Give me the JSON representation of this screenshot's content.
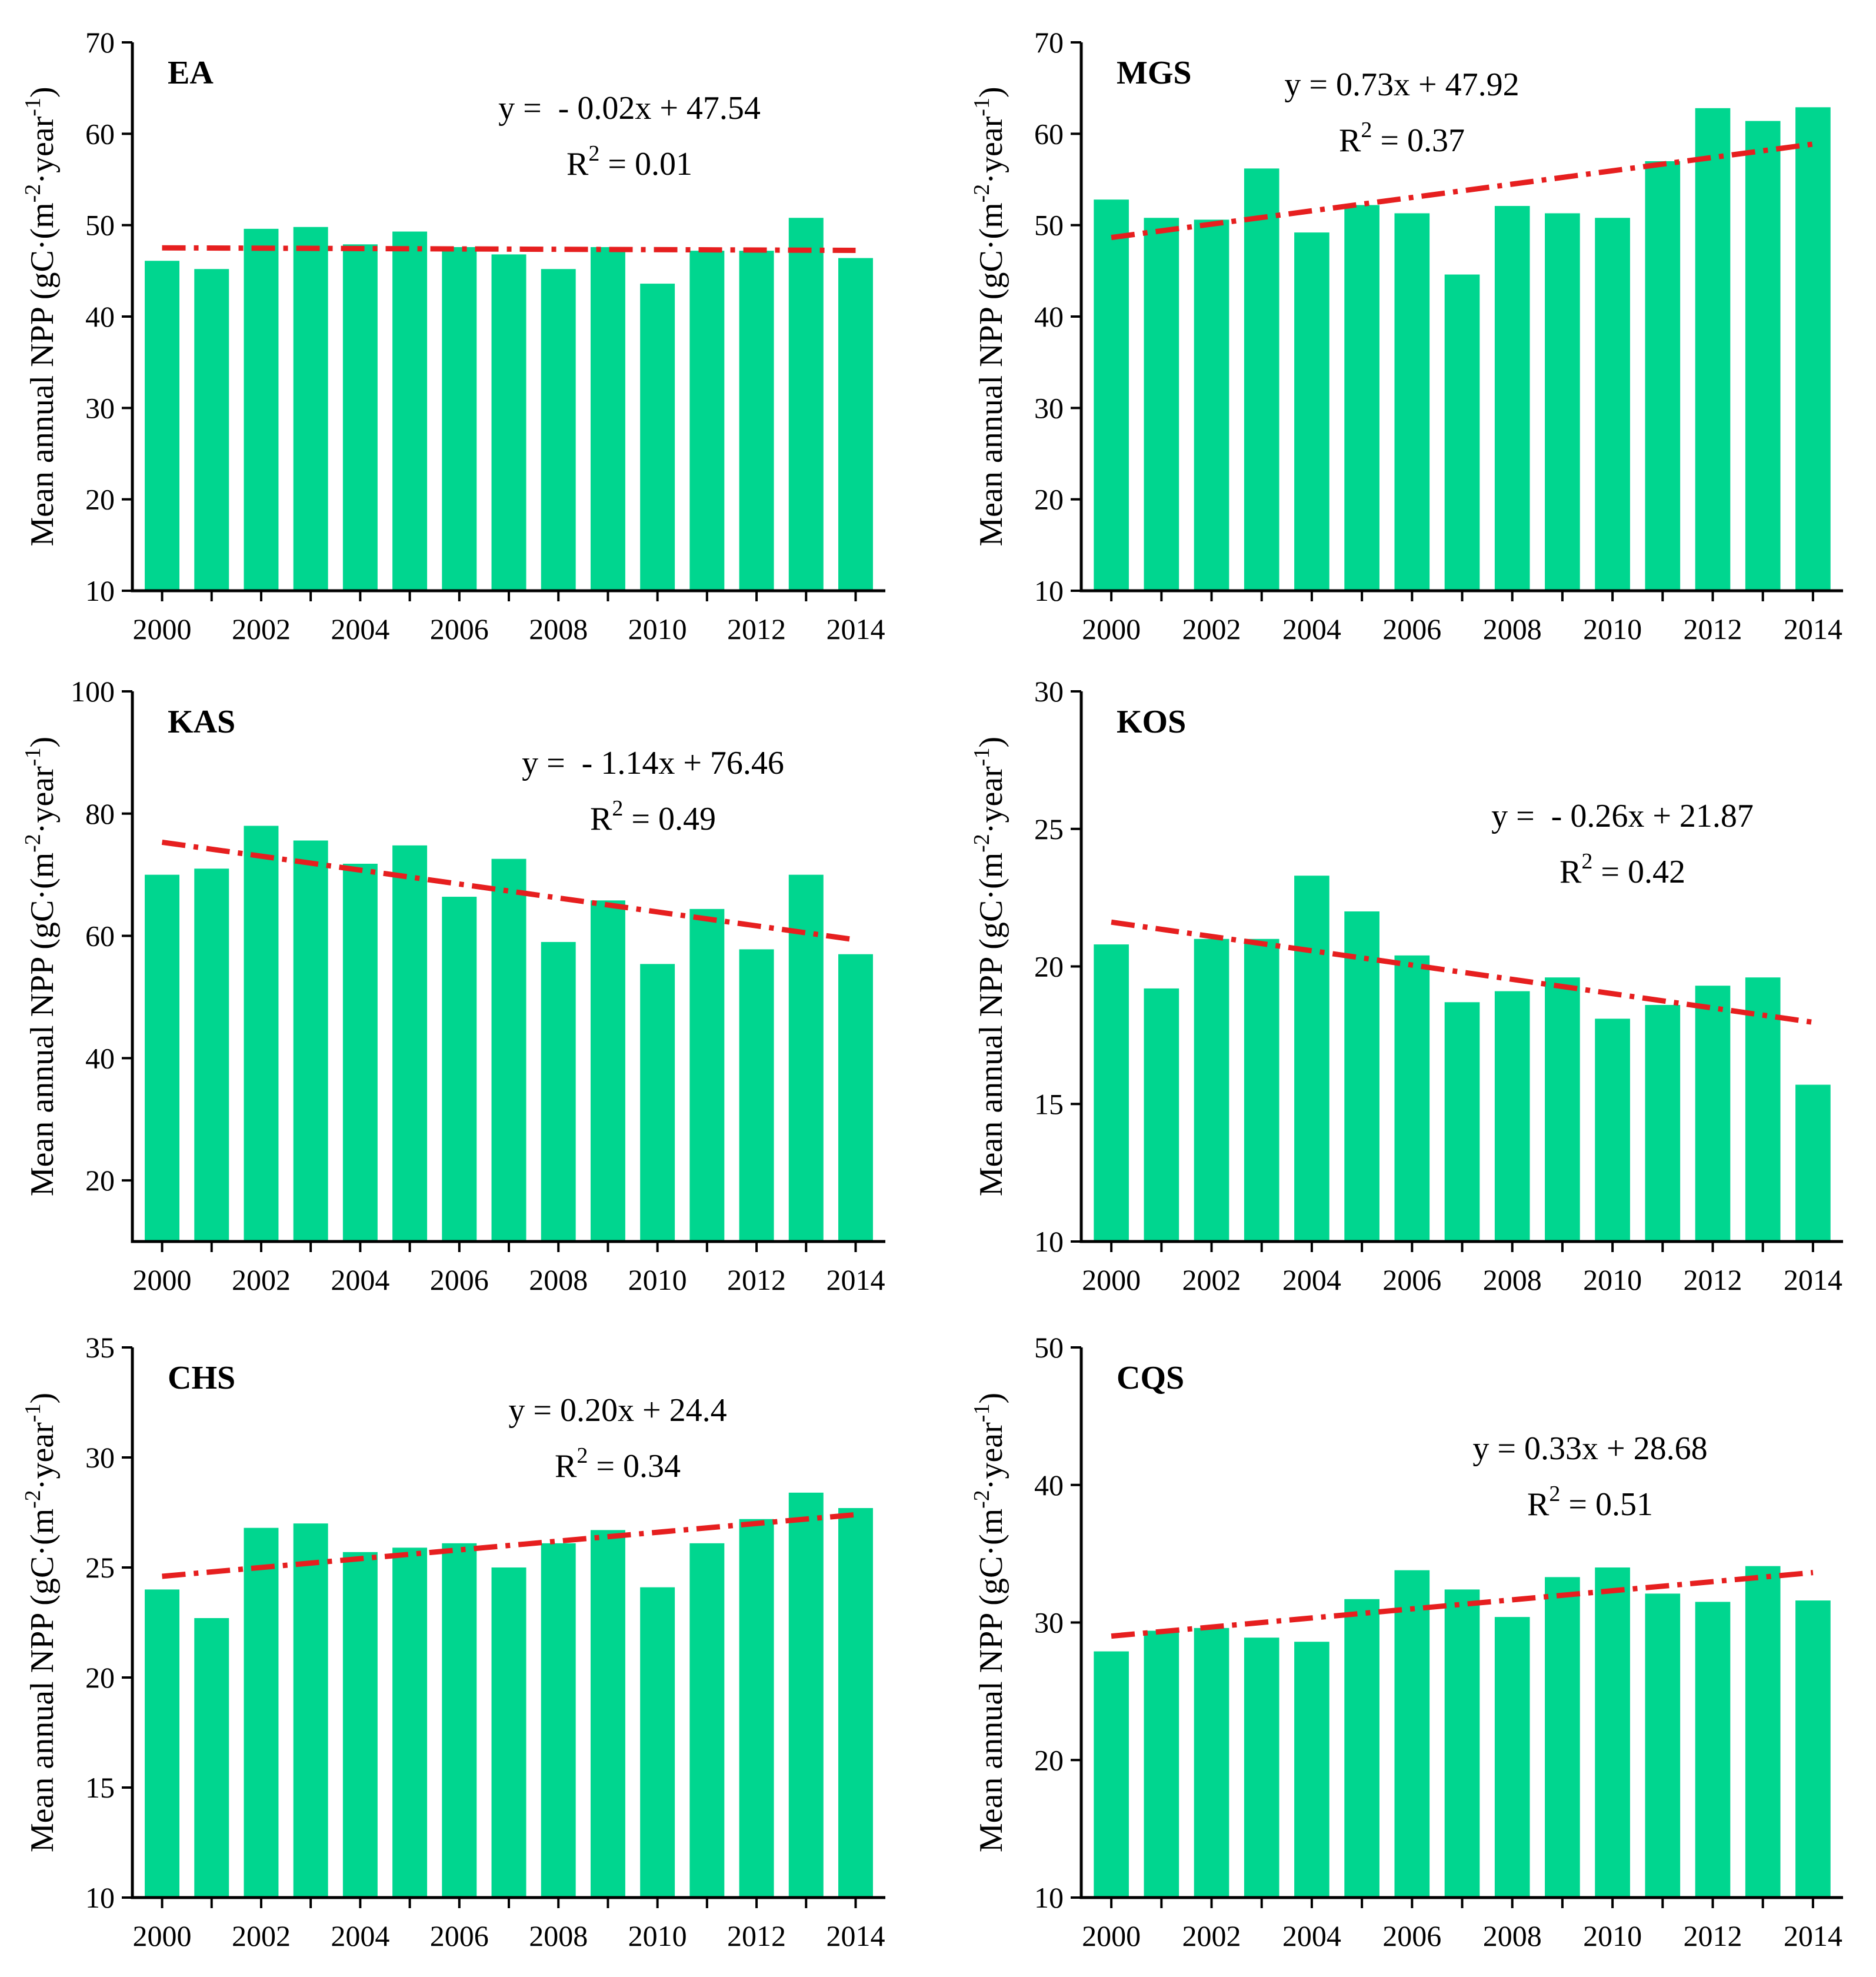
{
  "chart_data": [
    {
      "type": "bar",
      "title": "EA",
      "ylabel": "Mean annual NPP (gC·(m-2·year-1)",
      "ylabel_main": "Mean annual NPP (gC·(m",
      "ylabel_sup1": "-2",
      "ylabel_mid": "·year",
      "ylabel_sup2": "-1",
      "ylabel_end": ")",
      "x": [
        2000,
        2001,
        2002,
        2003,
        2004,
        2005,
        2006,
        2007,
        2008,
        2009,
        2010,
        2011,
        2012,
        2013,
        2014
      ],
      "xticks": [
        "2000",
        "2002",
        "2004",
        "2006",
        "2008",
        "2010",
        "2012",
        "2014"
      ],
      "values": [
        46.1,
        45.2,
        49.6,
        49.8,
        47.9,
        49.3,
        47.6,
        46.8,
        45.2,
        47.6,
        43.6,
        47.2,
        47.2,
        50.8,
        46.4
      ],
      "ylim": [
        10,
        70
      ],
      "yticks": [
        "10",
        "20",
        "30",
        "40",
        "50",
        "60",
        "70"
      ],
      "trend": {
        "slope": -0.02,
        "intercept": 47.54
      },
      "equation": "y =  - 0.02x + 47.54",
      "r2_label": "R",
      "r2_sup": "2",
      "r2_value": " = 0.01",
      "colors": {
        "bar": "#00d68f",
        "trend": "#e61f1f"
      }
    },
    {
      "type": "bar",
      "title": "MGS",
      "ylabel": "Mean annual NPP (gC·(m-2·year-1)",
      "ylabel_main": "Mean annual NPP (gC·(m",
      "ylabel_sup1": "-2",
      "ylabel_mid": "·year",
      "ylabel_sup2": "-1",
      "ylabel_end": ")",
      "x": [
        2000,
        2001,
        2002,
        2003,
        2004,
        2005,
        2006,
        2007,
        2008,
        2009,
        2010,
        2011,
        2012,
        2013,
        2014
      ],
      "xticks": [
        "2000",
        "2002",
        "2004",
        "2006",
        "2008",
        "2010",
        "2012",
        "2014"
      ],
      "values": [
        52.8,
        50.8,
        50.6,
        56.2,
        49.2,
        52.2,
        51.3,
        44.6,
        52.1,
        51.3,
        50.8,
        57.0,
        62.8,
        61.4,
        62.9
      ],
      "ylim": [
        10,
        70
      ],
      "yticks": [
        "10",
        "20",
        "30",
        "40",
        "50",
        "60",
        "70"
      ],
      "trend": {
        "slope": 0.73,
        "intercept": 47.92
      },
      "equation": "y = 0.73x + 47.92",
      "r2_label": "R",
      "r2_sup": "2",
      "r2_value": " = 0.37",
      "colors": {
        "bar": "#00d68f",
        "trend": "#e61f1f"
      }
    },
    {
      "type": "bar",
      "title": "KAS",
      "ylabel": "Mean annual NPP (gC·(m-2·year-1)",
      "ylabel_main": "Mean annual NPP (gC·(m",
      "ylabel_sup1": "-2",
      "ylabel_mid": "·year",
      "ylabel_sup2": "-1",
      "ylabel_end": ")",
      "x": [
        2000,
        2001,
        2002,
        2003,
        2004,
        2005,
        2006,
        2007,
        2008,
        2009,
        2010,
        2011,
        2012,
        2013,
        2014
      ],
      "xticks": [
        "2000",
        "2002",
        "2004",
        "2006",
        "2008",
        "2010",
        "2012",
        "2014"
      ],
      "values": [
        70.0,
        71.0,
        78.0,
        75.6,
        71.8,
        74.8,
        66.4,
        72.6,
        59.0,
        65.8,
        55.4,
        64.4,
        57.8,
        70.0,
        57.0
      ],
      "ylim": [
        10,
        100
      ],
      "yticks": [
        "20",
        "40",
        "60",
        "80",
        "100"
      ],
      "trend": {
        "slope": -1.14,
        "intercept": 76.46
      },
      "equation": "y =  - 1.14x + 76.46",
      "r2_label": "R",
      "r2_sup": "2",
      "r2_value": " = 0.49",
      "colors": {
        "bar": "#00d68f",
        "trend": "#e61f1f"
      }
    },
    {
      "type": "bar",
      "title": "KOS",
      "ylabel": "Mean annual NPP (gC·(m-2·year-1)",
      "ylabel_main": "Mean annual NPP (gC·(m",
      "ylabel_sup1": "-2",
      "ylabel_mid": "·year",
      "ylabel_sup2": "-1",
      "ylabel_end": ")",
      "x": [
        2000,
        2001,
        2002,
        2003,
        2004,
        2005,
        2006,
        2007,
        2008,
        2009,
        2010,
        2011,
        2012,
        2013,
        2014
      ],
      "xticks": [
        "2000",
        "2002",
        "2004",
        "2006",
        "2008",
        "2010",
        "2012",
        "2014"
      ],
      "values": [
        20.8,
        19.2,
        21.0,
        21.0,
        23.3,
        22.0,
        20.4,
        18.7,
        19.1,
        19.6,
        18.1,
        18.6,
        19.3,
        19.6,
        15.7
      ],
      "ylim": [
        10,
        30
      ],
      "yticks": [
        "10",
        "15",
        "20",
        "25",
        "30"
      ],
      "trend": {
        "slope": -0.26,
        "intercept": 21.87
      },
      "equation": "y =  - 0.26x + 21.87",
      "r2_label": "R",
      "r2_sup": "2",
      "r2_value": " = 0.42",
      "colors": {
        "bar": "#00d68f",
        "trend": "#e61f1f"
      }
    },
    {
      "type": "bar",
      "title": "CHS",
      "ylabel": "Mean annual NPP (gC·(m-2·year-1)",
      "ylabel_main": "Mean annual NPP (gC·(m",
      "ylabel_sup1": "-2",
      "ylabel_mid": "·year",
      "ylabel_sup2": "-1",
      "ylabel_end": ")",
      "x": [
        2000,
        2001,
        2002,
        2003,
        2004,
        2005,
        2006,
        2007,
        2008,
        2009,
        2010,
        2011,
        2012,
        2013,
        2014
      ],
      "xticks": [
        "2000",
        "2002",
        "2004",
        "2006",
        "2008",
        "2010",
        "2012",
        "2014"
      ],
      "values": [
        24.0,
        22.7,
        26.8,
        27.0,
        25.7,
        25.9,
        26.1,
        25.0,
        26.1,
        26.7,
        24.1,
        26.1,
        27.2,
        28.4,
        27.7
      ],
      "ylim": [
        10,
        35
      ],
      "yticks": [
        "10",
        "15",
        "20",
        "25",
        "30",
        "35"
      ],
      "trend": {
        "slope": 0.2,
        "intercept": 24.4
      },
      "equation": "y = 0.20x + 24.4",
      "r2_label": "R",
      "r2_sup": "2",
      "r2_value": " = 0.34",
      "colors": {
        "bar": "#00d68f",
        "trend": "#e61f1f"
      }
    },
    {
      "type": "bar",
      "title": "CQS",
      "ylabel": "Mean annual NPP (gC·(m-2·year-1)",
      "ylabel_main": "Mean annual NPP (gC·(m",
      "ylabel_sup1": "-2",
      "ylabel_mid": "·year",
      "ylabel_sup2": "-1",
      "ylabel_end": ")",
      "x": [
        2000,
        2001,
        2002,
        2003,
        2004,
        2005,
        2006,
        2007,
        2008,
        2009,
        2010,
        2011,
        2012,
        2013,
        2014
      ],
      "xticks": [
        "2000",
        "2002",
        "2004",
        "2006",
        "2008",
        "2010",
        "2012",
        "2014"
      ],
      "values": [
        27.9,
        29.4,
        29.6,
        28.9,
        28.6,
        31.7,
        33.8,
        32.4,
        30.4,
        33.3,
        34.0,
        32.1,
        31.5,
        34.1,
        31.6
      ],
      "ylim": [
        10,
        50
      ],
      "yticks": [
        "10",
        "20",
        "30",
        "40",
        "50"
      ],
      "trend": {
        "slope": 0.33,
        "intercept": 28.68
      },
      "equation": "y = 0.33x + 28.68",
      "r2_label": "R",
      "r2_sup": "2",
      "r2_value": " = 0.51",
      "colors": {
        "bar": "#00d68f",
        "trend": "#e61f1f"
      }
    }
  ]
}
